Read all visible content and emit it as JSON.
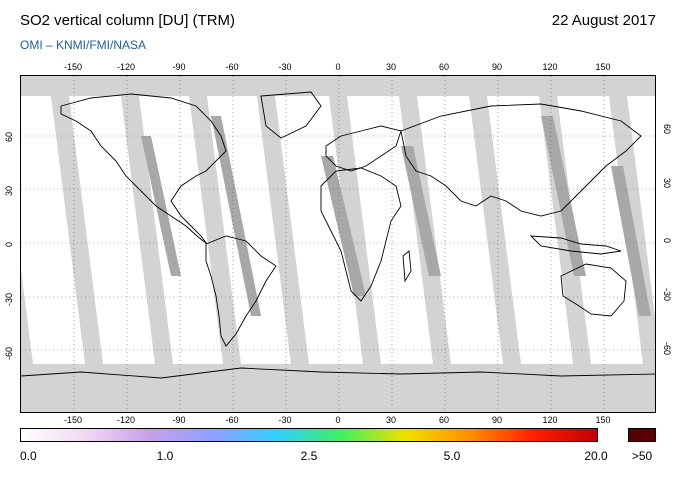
{
  "header": {
    "title": "SO2 vertical column [DU] (TRM)",
    "date": "22 August 2017",
    "credit": "OMI  –  KNMI/FMI/NASA"
  },
  "map": {
    "lon_ticks": [
      "-150",
      "-120",
      "-90",
      "-60",
      "-30",
      "0",
      "30",
      "60",
      "90",
      "120",
      "150"
    ],
    "lat_ticks": [
      "60",
      "30",
      "0",
      "-30",
      "-60"
    ],
    "lon_values": [
      -150,
      -120,
      -90,
      -60,
      -30,
      0,
      30,
      60,
      90,
      120,
      150
    ],
    "lat_values": [
      60,
      30,
      0,
      -30,
      -60
    ],
    "colors": {
      "background": "#ffffff",
      "no_data": "#d3d3d3",
      "swath_overlap": "#a8a8a8",
      "land_outline": "#000000",
      "graticule": "#666666"
    }
  },
  "colorbar": {
    "labels": [
      "0.0",
      "1.0",
      "2.5",
      "5.0",
      "20.0"
    ],
    "over_label": ">50",
    "colors": [
      "#ffffff",
      "#f3d8f3",
      "#c8a0e8",
      "#8fa0ff",
      "#30d0ff",
      "#40f060",
      "#f0e000",
      "#ff9000",
      "#ff2000",
      "#c00000"
    ],
    "over_color": "#5a0000"
  }
}
